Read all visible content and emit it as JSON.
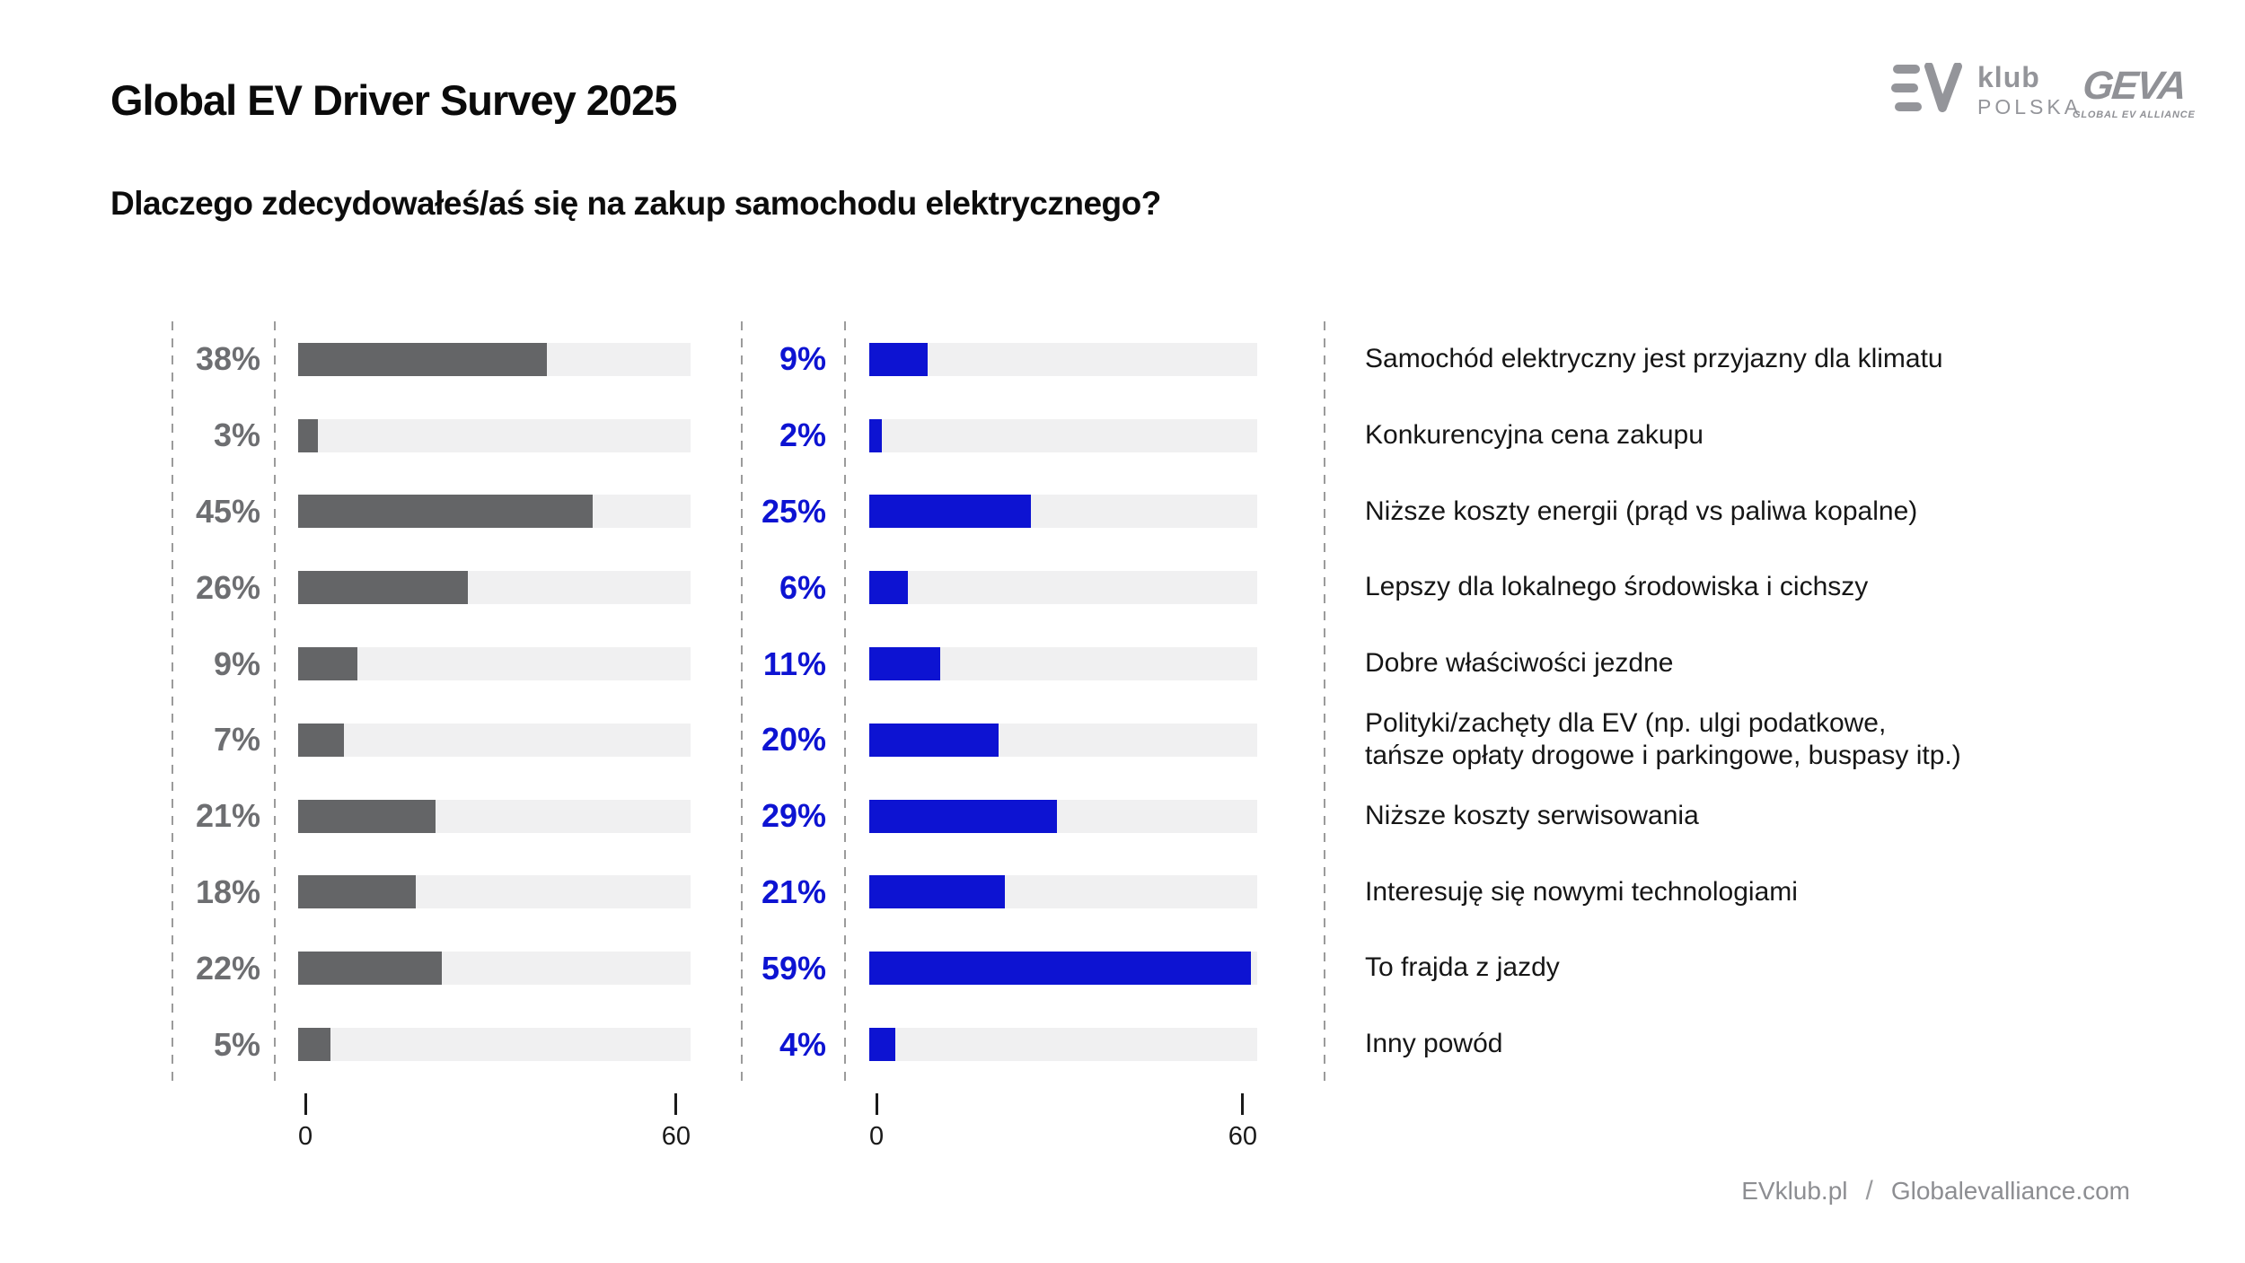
{
  "header": {
    "title": "Global EV Driver Survey 2025",
    "subtitle": "Dlaczego zdecydowałeś/aś się na zakup samochodu elektrycznego?"
  },
  "logos": {
    "evklub": {
      "icon": "ev-logo-icon",
      "line1": "klub",
      "line2": "POLSKA"
    },
    "geva": {
      "name": "GEVA",
      "tagline": "GLOBAL EV ALLIANCE"
    }
  },
  "colors": {
    "gray_bar": "#646567",
    "gray_label": "#6d6e71",
    "blue": "#0d13d2",
    "track": "#f0f0f1",
    "dashed": "#9b9b9b"
  },
  "chart_data": {
    "type": "bar",
    "orientation": "horizontal",
    "title": "Dlaczego zdecydowałeś/aś się na zakup samochodu elektrycznego?",
    "axis": {
      "min": 0,
      "max": 60,
      "tick_labels": [
        "0",
        "60"
      ],
      "grid": false
    },
    "categories": [
      "Samochód elektryczny jest przyjazny dla klimatu",
      "Konkurencyjna cena zakupu",
      "Niższe koszty energii (prąd vs paliwa kopalne)",
      "Lepszy dla lokalnego środowiska i cichszy",
      "Dobre właściwości jezdne",
      "Polityki/zachęty dla EV (np. ulgi podatkowe,\ntańsze opłaty drogowe i parkingowe, buspasy itp.)",
      "Niższe koszty serwisowania",
      "Interesuję się nowymi technologiami",
      "To frajda z jazdy",
      "Inny powód"
    ],
    "series": [
      {
        "name": "gray",
        "color": "#646567",
        "values": [
          38,
          3,
          45,
          26,
          9,
          7,
          21,
          18,
          22,
          5
        ],
        "labels": [
          "38%",
          "3%",
          "45%",
          "26%",
          "9%",
          "7%",
          "21%",
          "18%",
          "22%",
          "5%"
        ]
      },
      {
        "name": "blue",
        "color": "#0d13d2",
        "values": [
          9,
          2,
          25,
          6,
          11,
          20,
          29,
          21,
          59,
          4
        ],
        "labels": [
          "9%",
          "2%",
          "25%",
          "6%",
          "11%",
          "20%",
          "29%",
          "21%",
          "59%",
          "4%"
        ]
      }
    ]
  },
  "footer": {
    "left": "EVklub.pl",
    "separator": "/",
    "right": "Globalevalliance.com"
  }
}
